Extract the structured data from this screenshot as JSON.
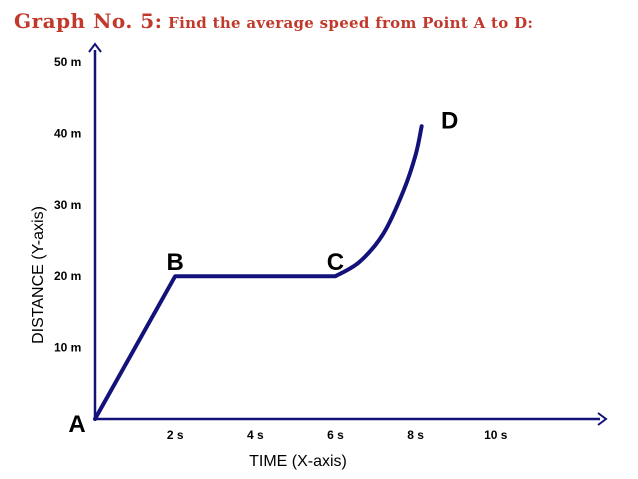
{
  "title": {
    "lead": "Graph No. 5:",
    "question": "Find the average speed from Point A to D:"
  },
  "colors": {
    "title": "#c0392b",
    "line": "#12127a",
    "axis": "#12127a"
  },
  "chart_data": {
    "type": "line",
    "xlabel": "TIME (X-axis)",
    "ylabel": "DISTANCE (Y-axis)",
    "xlim": [
      0,
      12.6
    ],
    "ylim": [
      0,
      50
    ],
    "x_ticks": [
      {
        "value": 2,
        "label": "2 s"
      },
      {
        "value": 4,
        "label": "4 s"
      },
      {
        "value": 6,
        "label": "6 s"
      },
      {
        "value": 8,
        "label": "8 s"
      },
      {
        "value": 10,
        "label": "10 s"
      }
    ],
    "y_ticks": [
      {
        "value": 10,
        "label": "10 m"
      },
      {
        "value": 20,
        "label": "20 m"
      },
      {
        "value": 30,
        "label": "30 m"
      },
      {
        "value": 40,
        "label": "40 m"
      },
      {
        "value": 50,
        "label": "50 m"
      }
    ],
    "series": [
      {
        "x": [
          0,
          2,
          6,
          6.6,
          7.2,
          7.7,
          8,
          8.15
        ],
        "y": [
          0,
          20,
          20,
          22,
          26,
          32,
          37,
          41
        ]
      }
    ],
    "points": [
      {
        "label": "A",
        "x": 0,
        "y": 0
      },
      {
        "label": "B",
        "x": 2,
        "y": 20
      },
      {
        "label": "C",
        "x": 6,
        "y": 20
      },
      {
        "label": "D",
        "x": 8.15,
        "y": 41
      }
    ]
  }
}
